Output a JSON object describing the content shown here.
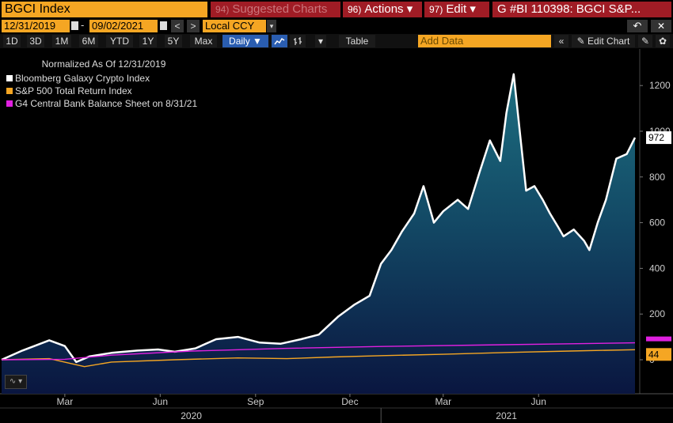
{
  "header": {
    "ticker": "BGCI Index",
    "suggested": {
      "num": "94)",
      "label": "Suggested Charts"
    },
    "actions": {
      "num": "96)",
      "label": "Actions",
      "caret": "▾"
    },
    "edit": {
      "num": "97)",
      "label": "Edit",
      "caret": "▾"
    },
    "security": "G #BI 110398: BGCI S&P..."
  },
  "range": {
    "start": "12/31/2019",
    "separator": "-",
    "end": "09/02/2021",
    "prev": "<",
    "next": ">",
    "currency": "Local CCY",
    "currency_caret": "▾",
    "undo": "↶",
    "close": "✕"
  },
  "toolbar": {
    "periods": [
      "1D",
      "3D",
      "1M",
      "6M",
      "YTD",
      "1Y",
      "5Y",
      "Max"
    ],
    "frequency": "Daily ▼",
    "line_icon": "line-chart-icon",
    "bar_icon": "ohlc-bar-icon",
    "options": "▾",
    "table": "Table",
    "add_data": "Add Data",
    "collapse": "«",
    "edit_chart": "✎ Edit Chart",
    "annotate": "✎",
    "gear": "✿"
  },
  "legend": {
    "title": "Normalized As Of 12/31/2019",
    "items": [
      {
        "label": "Bloomberg Galaxy Crypto Index",
        "color": "#ffffff"
      },
      {
        "label": "S&P 500 Total Return Index",
        "color": "#f5a623"
      },
      {
        "label": "G4 Central Bank Balance Sheet on 8/31/21",
        "color": "#e020e0"
      }
    ]
  },
  "chart_type_button": "∿ ▾",
  "chart_data": {
    "type": "area",
    "title": "",
    "ylim": [
      -150,
      1300
    ],
    "y_ticks": [
      0,
      200,
      400,
      600,
      800,
      1000,
      1200
    ],
    "x_month_labels": [
      "Mar",
      "Jun",
      "Sep",
      "Dec",
      "Mar",
      "Jun"
    ],
    "x_year_labels": [
      "2020",
      "2021"
    ],
    "grid": false,
    "legend_position": "top-left",
    "series": [
      {
        "name": "Bloomberg Galaxy Crypto Index",
        "color": "#ffffff",
        "fill": true,
        "last_label": "972",
        "points": [
          [
            "2019-12-31",
            0
          ],
          [
            "2020-01-20",
            40
          ],
          [
            "2020-02-15",
            85
          ],
          [
            "2020-03-01",
            60
          ],
          [
            "2020-03-12",
            -10
          ],
          [
            "2020-03-25",
            15
          ],
          [
            "2020-04-15",
            30
          ],
          [
            "2020-05-10",
            40
          ],
          [
            "2020-05-30",
            45
          ],
          [
            "2020-06-15",
            35
          ],
          [
            "2020-07-05",
            50
          ],
          [
            "2020-07-25",
            90
          ],
          [
            "2020-08-15",
            100
          ],
          [
            "2020-09-05",
            75
          ],
          [
            "2020-09-25",
            70
          ],
          [
            "2020-10-15",
            90
          ],
          [
            "2020-11-01",
            110
          ],
          [
            "2020-11-20",
            190
          ],
          [
            "2020-12-05",
            240
          ],
          [
            "2020-12-20",
            280
          ],
          [
            "2020-12-31",
            420
          ],
          [
            "2021-01-10",
            480
          ],
          [
            "2021-01-20",
            560
          ],
          [
            "2021-02-01",
            640
          ],
          [
            "2021-02-10",
            760
          ],
          [
            "2021-02-20",
            600
          ],
          [
            "2021-03-01",
            650
          ],
          [
            "2021-03-15",
            700
          ],
          [
            "2021-03-25",
            660
          ],
          [
            "2021-04-05",
            820
          ],
          [
            "2021-04-15",
            960
          ],
          [
            "2021-04-25",
            870
          ],
          [
            "2021-05-01",
            1080
          ],
          [
            "2021-05-08",
            1250
          ],
          [
            "2021-05-15",
            950
          ],
          [
            "2021-05-20",
            740
          ],
          [
            "2021-05-28",
            760
          ],
          [
            "2021-06-05",
            700
          ],
          [
            "2021-06-12",
            640
          ],
          [
            "2021-06-20",
            580
          ],
          [
            "2021-06-25",
            540
          ],
          [
            "2021-07-05",
            570
          ],
          [
            "2021-07-15",
            520
          ],
          [
            "2021-07-20",
            480
          ],
          [
            "2021-07-28",
            600
          ],
          [
            "2021-08-05",
            700
          ],
          [
            "2021-08-15",
            880
          ],
          [
            "2021-08-25",
            900
          ],
          [
            "2021-09-02",
            972
          ]
        ]
      },
      {
        "name": "S&P 500 Total Return Index",
        "color": "#f5a623",
        "fill": false,
        "last_label": "44",
        "points": [
          [
            "2019-12-31",
            0
          ],
          [
            "2020-02-15",
            5
          ],
          [
            "2020-03-20",
            -30
          ],
          [
            "2020-04-15",
            -10
          ],
          [
            "2020-06-15",
            0
          ],
          [
            "2020-08-15",
            8
          ],
          [
            "2020-10-01",
            5
          ],
          [
            "2020-11-15",
            12
          ],
          [
            "2021-01-01",
            18
          ],
          [
            "2021-03-01",
            24
          ],
          [
            "2021-05-01",
            32
          ],
          [
            "2021-07-01",
            38
          ],
          [
            "2021-09-02",
            44
          ]
        ]
      },
      {
        "name": "G4 Central Bank Balance Sheet on 8/31/21",
        "color": "#e020e0",
        "fill": false,
        "points": [
          [
            "2019-12-31",
            0
          ],
          [
            "2020-03-01",
            2
          ],
          [
            "2020-04-15",
            20
          ],
          [
            "2020-07-01",
            38
          ],
          [
            "2020-10-01",
            50
          ],
          [
            "2021-01-01",
            58
          ],
          [
            "2021-04-01",
            64
          ],
          [
            "2021-07-01",
            70
          ],
          [
            "2021-09-02",
            74
          ]
        ]
      }
    ]
  }
}
